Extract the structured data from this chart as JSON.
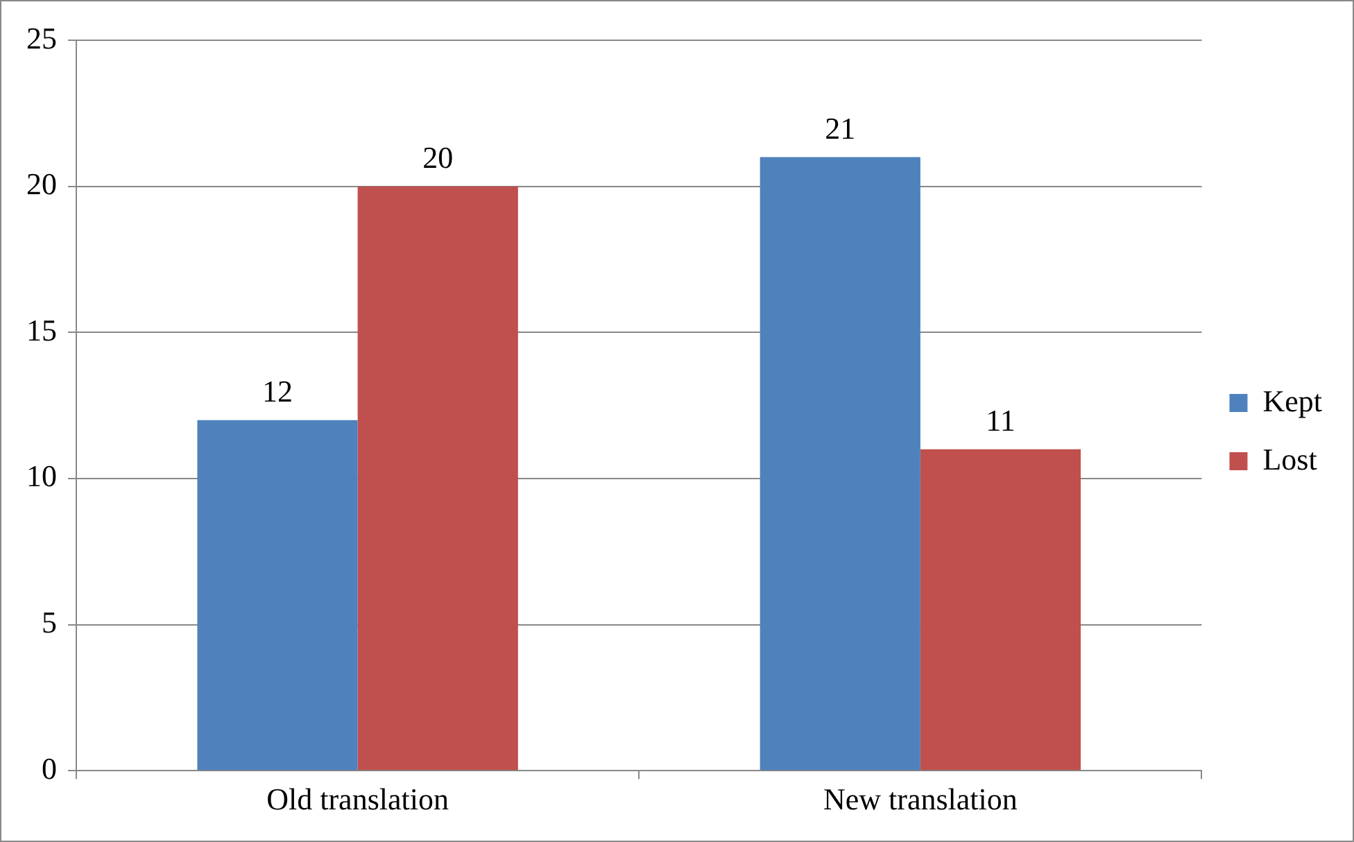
{
  "chart_data": {
    "type": "bar",
    "categories": [
      "Old translation",
      "New translation"
    ],
    "series": [
      {
        "name": "Kept",
        "color": "#4f81bd",
        "values": [
          12,
          21
        ]
      },
      {
        "name": "Lost",
        "color": "#c0504d",
        "values": [
          20,
          11
        ]
      }
    ],
    "ylim": [
      0,
      25
    ],
    "yticks": [
      0,
      5,
      10,
      15,
      20,
      25
    ],
    "grid": "y",
    "legend": "right",
    "data_labels": true
  }
}
